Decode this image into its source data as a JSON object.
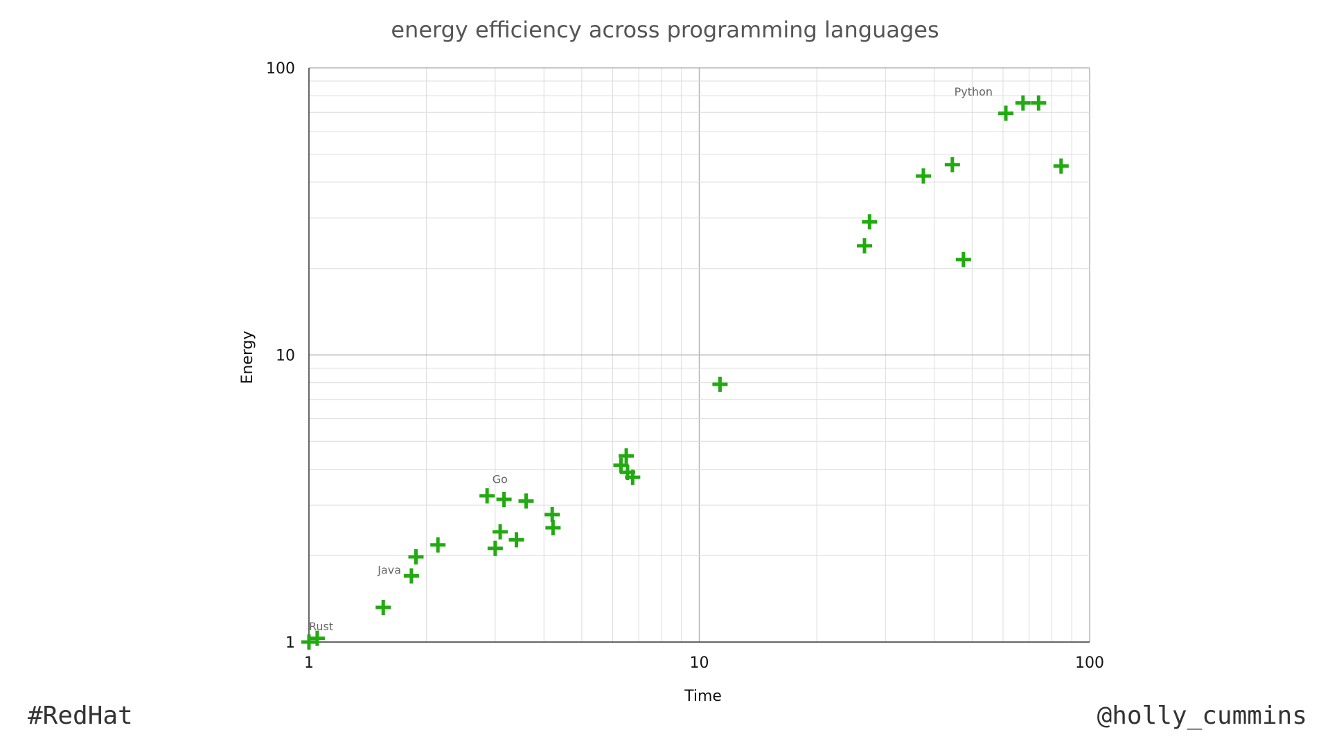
{
  "chart_data": {
    "type": "scatter",
    "title": "energy efficiency across programming languages",
    "xlabel": "Time",
    "ylabel": "Energy",
    "x_scale": "log",
    "y_scale": "log",
    "xlim": [
      1,
      100
    ],
    "ylim": [
      1,
      100
    ],
    "grid": true,
    "marker": "plus",
    "marker_color": "#22aa11",
    "x_ticks": [
      {
        "value": 1,
        "label": "1"
      },
      {
        "value": 10,
        "label": "10"
      },
      {
        "value": 100,
        "label": "100"
      }
    ],
    "y_ticks": [
      {
        "value": 1,
        "label": "1"
      },
      {
        "value": 10,
        "label": "10"
      },
      {
        "value": 100,
        "label": "100"
      }
    ],
    "points": [
      {
        "x": 1.0,
        "y": 1.0
      },
      {
        "x": 1.05,
        "y": 1.03
      },
      {
        "x": 1.55,
        "y": 1.32
      },
      {
        "x": 1.83,
        "y": 1.7
      },
      {
        "x": 1.88,
        "y": 1.98
      },
      {
        "x": 2.14,
        "y": 2.18
      },
      {
        "x": 2.86,
        "y": 3.23
      },
      {
        "x": 3.0,
        "y": 2.12
      },
      {
        "x": 3.09,
        "y": 2.42
      },
      {
        "x": 3.16,
        "y": 3.14
      },
      {
        "x": 3.4,
        "y": 2.27
      },
      {
        "x": 3.6,
        "y": 3.1
      },
      {
        "x": 4.2,
        "y": 2.78
      },
      {
        "x": 4.22,
        "y": 2.5
      },
      {
        "x": 6.3,
        "y": 4.13
      },
      {
        "x": 6.5,
        "y": 4.45
      },
      {
        "x": 6.55,
        "y": 3.9
      },
      {
        "x": 6.75,
        "y": 3.75
      },
      {
        "x": 11.3,
        "y": 7.9
      },
      {
        "x": 26.5,
        "y": 24.0
      },
      {
        "x": 27.3,
        "y": 29.1
      },
      {
        "x": 37.5,
        "y": 42.0
      },
      {
        "x": 44.5,
        "y": 46.0
      },
      {
        "x": 47.5,
        "y": 21.5
      },
      {
        "x": 61.0,
        "y": 69.5
      },
      {
        "x": 67.5,
        "y": 75.5
      },
      {
        "x": 74.0,
        "y": 75.5
      },
      {
        "x": 84.5,
        "y": 45.5
      }
    ],
    "annotations": [
      {
        "text": "Rust",
        "x": 1.0,
        "y": 1.1
      },
      {
        "text": "Java",
        "x": 1.5,
        "y": 1.73
      },
      {
        "text": "Go",
        "x": 2.95,
        "y": 3.58
      },
      {
        "text": "Python",
        "x": 45.0,
        "y": 80.0
      }
    ]
  },
  "footer": {
    "left": "#RedHat",
    "right": "@holly_cummins"
  }
}
